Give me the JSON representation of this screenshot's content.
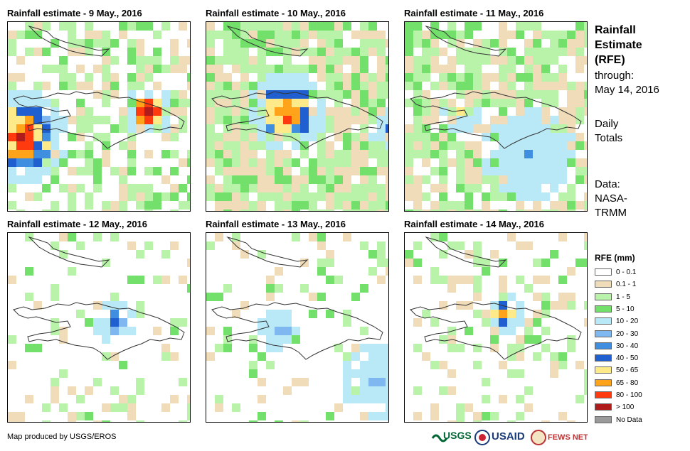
{
  "panels": [
    {
      "title": "Rainfall estimate - 9 May., 2016"
    },
    {
      "title": "Rainfall estimate - 10 May., 2016"
    },
    {
      "title": "Rainfall estimate - 11 May., 2016"
    },
    {
      "title": "Rainfall estimate - 12 May., 2016"
    },
    {
      "title": "Rainfall estimate - 13 May., 2016"
    },
    {
      "title": "Rainfall estimate - 14 May., 2016"
    }
  ],
  "sidebar": {
    "title_lines": [
      "Rainfall",
      "Estimate",
      "(RFE)"
    ],
    "through_label": "through:",
    "through_date": "May 14, 2016",
    "totals_lines": [
      "Daily",
      "Totals"
    ],
    "data_lines": [
      "Data:",
      "NASA-",
      "TRMM"
    ]
  },
  "legend": {
    "title": "RFE (mm)",
    "items": [
      {
        "label": "0 - 0.1",
        "color": "#ffffff"
      },
      {
        "label": "0.1 - 1",
        "color": "#f0dcb8"
      },
      {
        "label": "1 - 5",
        "color": "#b9f2a9"
      },
      {
        "label": "5 - 10",
        "color": "#73e06b"
      },
      {
        "label": "10 - 20",
        "color": "#b9e8f7"
      },
      {
        "label": "20 - 30",
        "color": "#7fb8f0"
      },
      {
        "label": "30 - 40",
        "color": "#3f8ee0"
      },
      {
        "label": "40 - 50",
        "color": "#1f5fd0"
      },
      {
        "label": "50 - 65",
        "color": "#ffea8a"
      },
      {
        "label": "65 - 80",
        "color": "#ffa31a"
      },
      {
        "label": "80 - 100",
        "color": "#ff3a0f"
      },
      {
        "label": "> 100",
        "color": "#b01c1c"
      },
      {
        "label": "No Data",
        "color": "#9a9a9a"
      }
    ]
  },
  "footer": {
    "credit": "Map produced by USGS/EROS",
    "logos": [
      {
        "name": "usgs-logo",
        "text": "USGS"
      },
      {
        "name": "usaid-logo",
        "text": "USAID"
      },
      {
        "name": "fews-net-logo",
        "text": "FEWS NET"
      }
    ]
  }
}
